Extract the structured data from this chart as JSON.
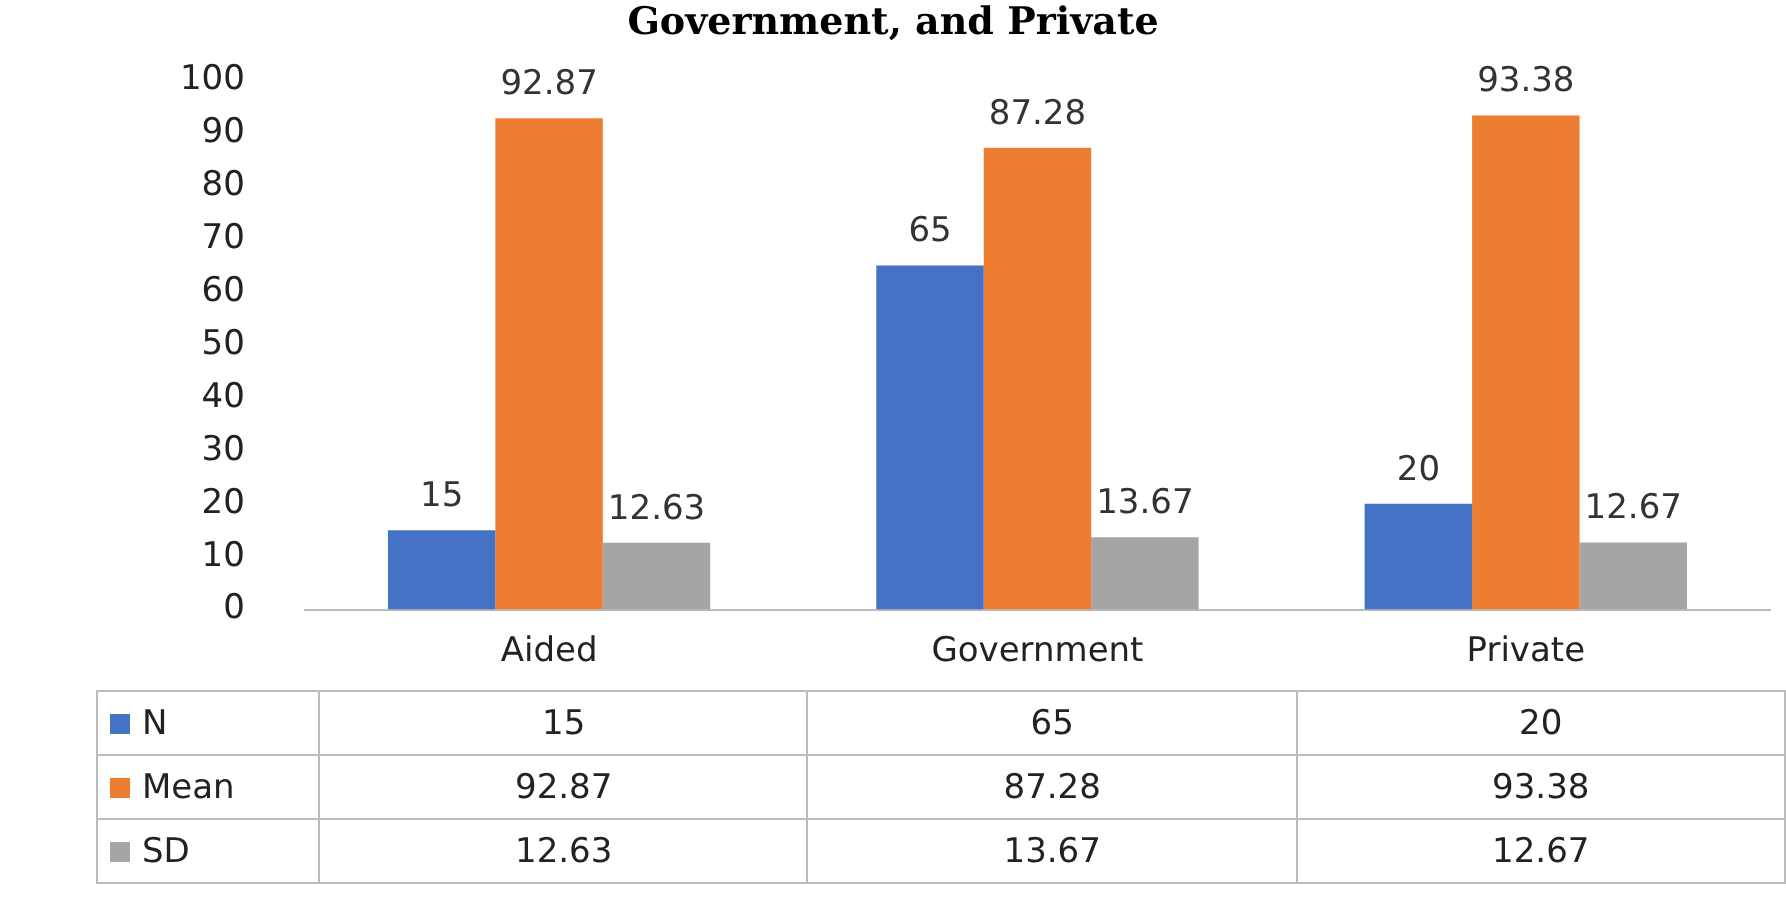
{
  "chart_data": {
    "type": "bar",
    "title": "Government, and Private",
    "categories": [
      "Aided",
      "Government",
      "Private"
    ],
    "series": [
      {
        "name": "N",
        "color": "#4472c4",
        "values": [
          15,
          65,
          20
        ]
      },
      {
        "name": "Mean",
        "color": "#ed7d31",
        "values": [
          92.87,
          87.28,
          93.38
        ]
      },
      {
        "name": "SD",
        "color": "#a5a5a5",
        "values": [
          12.63,
          13.67,
          12.67
        ]
      }
    ],
    "ylim": [
      0,
      100
    ],
    "yticks": [
      0,
      10,
      20,
      30,
      40,
      50,
      60,
      70,
      80,
      90,
      100
    ],
    "grid": false,
    "legend": "bottom",
    "data_labels": true,
    "annotations": [
      "15",
      "92.87",
      "12.63",
      "65",
      "87.28",
      "13.67",
      "20",
      "93.38",
      "12.67"
    ]
  }
}
